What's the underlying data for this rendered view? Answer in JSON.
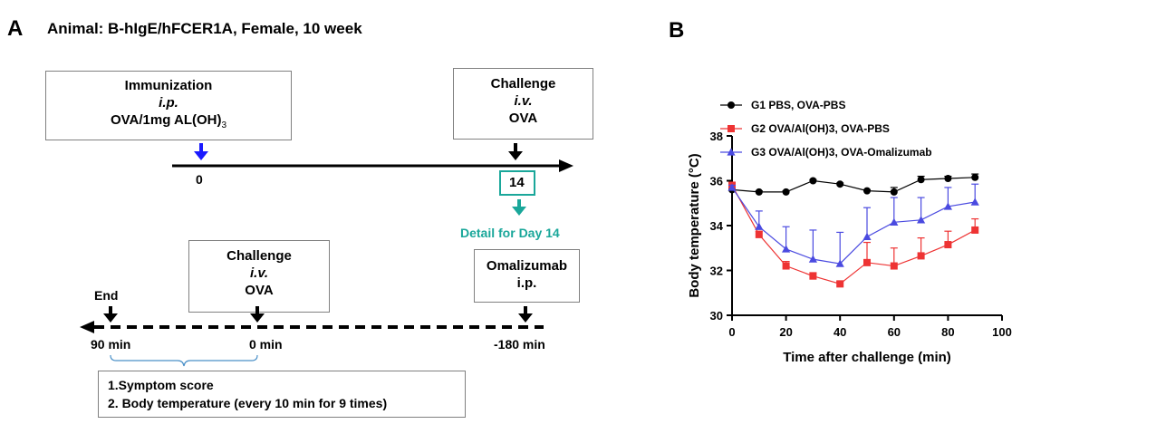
{
  "panel_a": {
    "letter": "A",
    "title": "Animal: B-hIgE/hFCER1A, Female, 10 week",
    "immunization": {
      "line1": "Immunization",
      "line2": "i.p.",
      "line3": "OVA/1mg AL(OH)",
      "line3_sub": "3"
    },
    "challenge_top": {
      "line1": "Challenge",
      "line2": "i.v.",
      "line3": "OVA"
    },
    "day0_label": "0",
    "day14_label": "14",
    "detail_label": "Detail for Day 14",
    "challenge_bottom": {
      "line1": "Challenge",
      "line2": "i.v.",
      "line3": "OVA"
    },
    "omalizumab": {
      "line1": "Omalizumab",
      "line2": "i.p."
    },
    "end_label": "End",
    "t90_label": "90 min",
    "t0_label": "0 min",
    "t180_label": "-180 min",
    "readouts": {
      "line1": "1.Symptom score",
      "line2": "2. Body temperature (every 10 min for 9 times)"
    },
    "colors": {
      "immunization_arrow": "#1a1aff",
      "detail_teal": "#1aa79a"
    }
  },
  "panel_b": {
    "letter": "B"
  },
  "chart_data": {
    "type": "line",
    "title": "",
    "xlabel": "Time after challenge (min)",
    "ylabel": "Body temperature (°C)",
    "xlim": [
      0,
      100
    ],
    "ylim": [
      30,
      38
    ],
    "xticks": [
      0,
      20,
      40,
      60,
      80,
      100
    ],
    "yticks": [
      30,
      32,
      34,
      36,
      38
    ],
    "grid": false,
    "legend_position": "top-right",
    "x": [
      0,
      10,
      20,
      30,
      40,
      50,
      60,
      70,
      80,
      90
    ],
    "series": [
      {
        "name": "G1 PBS, OVA-PBS",
        "color": "#000000",
        "marker": "circle",
        "values": [
          35.6,
          35.5,
          35.5,
          36.0,
          35.85,
          35.55,
          35.5,
          36.05,
          36.1,
          36.15
        ],
        "error": [
          0.1,
          0.05,
          0.05,
          0.05,
          0.05,
          0.05,
          0.2,
          0.15,
          0.1,
          0.15
        ]
      },
      {
        "name": "G2 OVA/Al(OH)3, OVA-PBS",
        "color": "#ee3333",
        "marker": "square",
        "values": [
          35.8,
          33.6,
          32.2,
          31.75,
          31.4,
          32.35,
          32.2,
          32.65,
          33.15,
          33.8
        ],
        "error": [
          0.1,
          0.15,
          0.2,
          0.15,
          0.1,
          0.9,
          0.8,
          0.8,
          0.6,
          0.5
        ]
      },
      {
        "name": "G3 OVA/Al(OH)3, OVA-Omalizumab",
        "color": "#4a4ae0",
        "marker": "triangle",
        "values": [
          35.7,
          33.95,
          32.95,
          32.5,
          32.3,
          33.5,
          34.15,
          34.25,
          34.85,
          35.05
        ],
        "error": [
          0.1,
          0.7,
          1.0,
          1.3,
          1.4,
          1.3,
          1.1,
          1.0,
          0.85,
          0.8
        ]
      }
    ]
  }
}
